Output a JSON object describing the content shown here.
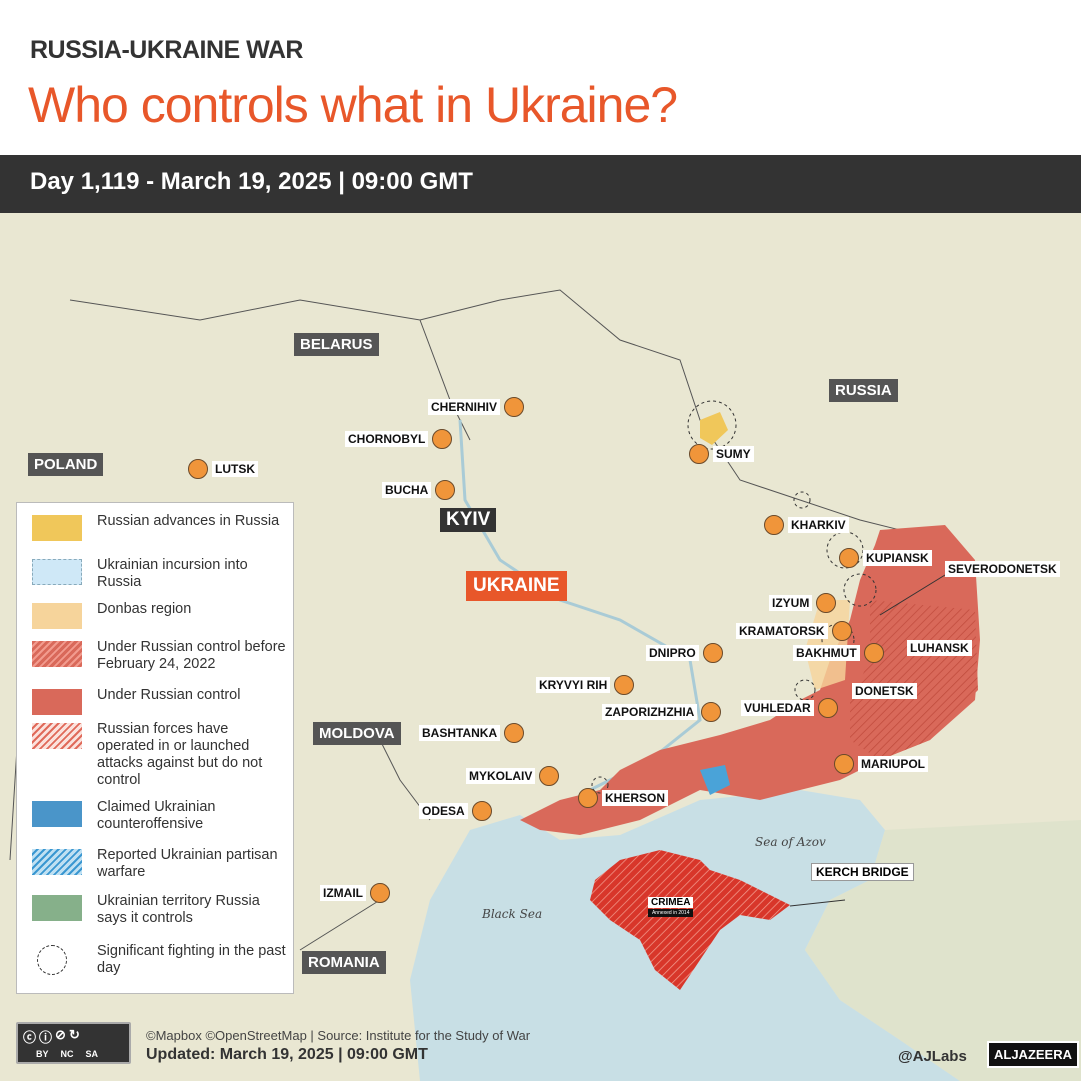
{
  "header": {
    "kicker": "RUSSIA-UKRAINE WAR",
    "title": "Who controls what in Ukraine?",
    "day_line": "Day 1,119 - March 19, 2025  |  09:00 GMT"
  },
  "colors": {
    "accent": "#e8572a",
    "russian_control": "#d9695a",
    "crimea": "#d8362a",
    "donbas": "#f6d49b",
    "russian_advances": "#f0c75a",
    "ukrainian_incursion": "#cfe8f7",
    "claimed_counteroffensive": "#4a95c9",
    "partisan": "#4aa3d8",
    "russia_says_controls": "#86b08a",
    "city_dot": "#f0953a",
    "land": "#e9e7d2",
    "sea": "#c8dfe5"
  },
  "map": {
    "countries": {
      "belarus": "BELARUS",
      "russia": "RUSSIA",
      "poland": "POLAND",
      "moldova": "MOLDOVA",
      "romania": "ROMANIA",
      "ukraine": "UKRAINE"
    },
    "capital": "KYIV",
    "cities": [
      "CHERNIHIV",
      "CHORNOBYL",
      "LUTSK",
      "BUCHA",
      "SUMY",
      "KHARKIV",
      "KUPIANSK",
      "SEVERODONETSK",
      "IZYUM",
      "KRAMATORSK",
      "BAKHMUT",
      "LUHANSK",
      "DNIPRO",
      "KRYVYI RIH",
      "DONETSK",
      "ZAPORIZHZHIA",
      "VUHLEDAR",
      "BASHTANKA",
      "MYKOLAIV",
      "KHERSON",
      "MARIUPOL",
      "ODESA",
      "IZMAIL"
    ],
    "seas": {
      "azov": "Sea of Azov",
      "black": "Black Sea"
    },
    "crimea": {
      "label": "CRIMEA",
      "note": "Annexed in 2014"
    },
    "kerch": "KERCH BRIDGE"
  },
  "legend": [
    {
      "label": "Russian advances in Russia",
      "icon": "solid-yellow"
    },
    {
      "label": "Ukrainian incursion into Russia",
      "icon": "light-blue-dashed"
    },
    {
      "label": "Donbas region",
      "icon": "solid-beige"
    },
    {
      "label": "Under Russian control before February 24, 2022",
      "icon": "red-hatched"
    },
    {
      "label": "Under Russian control",
      "icon": "solid-red"
    },
    {
      "label": "Russian forces have operated in or launched attacks against but do not control",
      "icon": "pink-hatched"
    },
    {
      "label": "Claimed Ukrainian counteroffensive",
      "icon": "solid-blue"
    },
    {
      "label": "Reported Ukrainian partisan warfare",
      "icon": "blue-hatched"
    },
    {
      "label": "Ukrainian territory Russia says it controls",
      "icon": "solid-green"
    },
    {
      "label": "Significant fighting in the past day",
      "icon": "dashed-circle"
    }
  ],
  "footer": {
    "credits": "©Mapbox ©OpenStreetMap | Source: Institute for the Study of War",
    "updated": "Updated: March 19, 2025  |  09:00 GMT",
    "handle": "@AJLabs",
    "brand": "ALJAZEERA",
    "license": [
      "BY",
      "NC",
      "SA"
    ]
  }
}
